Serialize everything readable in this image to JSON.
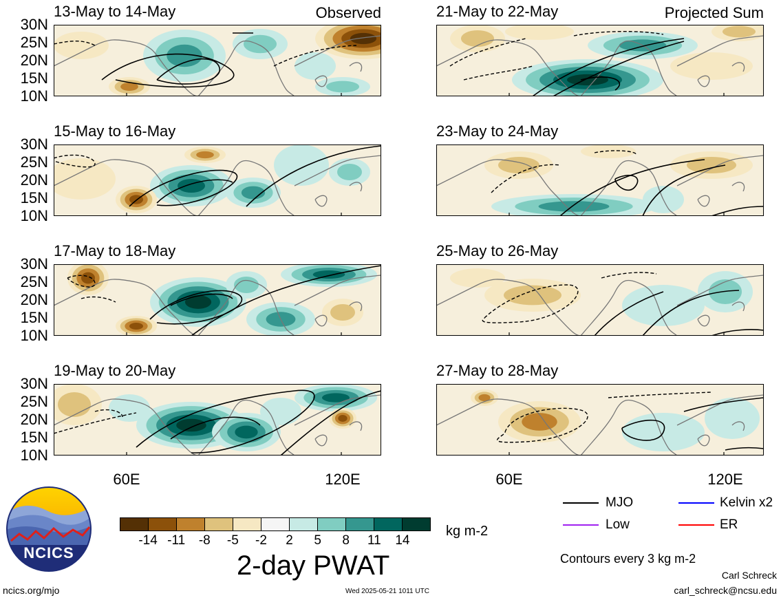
{
  "panels_left": [
    {
      "title": "13-May to 14-May",
      "tag": "Observed"
    },
    {
      "title": "15-May to 16-May",
      "tag": ""
    },
    {
      "title": "17-May to 18-May",
      "tag": ""
    },
    {
      "title": "19-May to 20-May",
      "tag": ""
    }
  ],
  "panels_right": [
    {
      "title": "21-May to 22-May",
      "tag": "Projected Sum"
    },
    {
      "title": "23-May to 24-May",
      "tag": ""
    },
    {
      "title": "25-May to 26-May",
      "tag": ""
    },
    {
      "title": "27-May to 28-May",
      "tag": ""
    }
  ],
  "lat_labels": [
    "30N",
    "25N",
    "20N",
    "15N",
    "10N"
  ],
  "lon_labels": [
    "60E",
    "120E"
  ],
  "colorbar": {
    "colors": [
      "#543005",
      "#8c510a",
      "#bf812d",
      "#dfc27d",
      "#f6e8c3",
      "#f5f5f5",
      "#c7eae5",
      "#80cdc1",
      "#35978f",
      "#01665e",
      "#003c30"
    ],
    "labels": [
      "-14",
      "-11",
      "-8",
      "-5",
      "-2",
      "2",
      "5",
      "8",
      "11",
      "14"
    ],
    "units": "kg m-2"
  },
  "main_title": "2-day PWAT",
  "legend": [
    {
      "label": "MJO",
      "color": "#000000"
    },
    {
      "label": "Kelvin x2",
      "color": "#0000ff"
    },
    {
      "label": "Low",
      "color": "#a020f0"
    },
    {
      "label": "ER",
      "color": "#ff0000"
    }
  ],
  "contour_note": "Contours every 3 kg m-2",
  "logo_text": "NCICS",
  "author": "Carl Schreck",
  "email": "carl_schreck@ncsu.edu",
  "site": "ncics.org/mjo",
  "timestamp": "Wed 2025-05-21 1011 UTC"
}
